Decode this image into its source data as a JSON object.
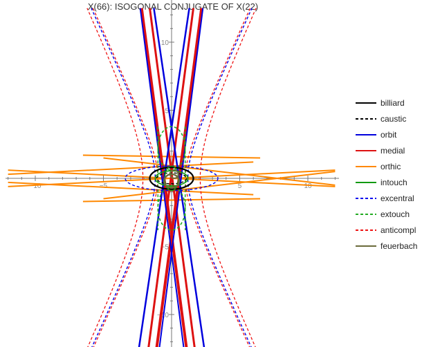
{
  "chart_data": {
    "type": "line",
    "title": "X(66): ISOGONAL CONJUGATE OF X(22)",
    "xlabel": "",
    "ylabel": "",
    "xlim": [
      -12.3,
      12.3
    ],
    "ylim": [
      -12.3,
      12.3
    ],
    "x_ticks": [
      -10,
      -5,
      5,
      10
    ],
    "y_ticks": [
      -10,
      -5,
      5,
      10
    ],
    "grid": false,
    "legend_position": "right",
    "series": [
      {
        "name": "billiard",
        "color": "#000000",
        "dash": "solid"
      },
      {
        "name": "caustic",
        "color": "#000000",
        "dash": "dashed"
      },
      {
        "name": "orbit",
        "color": "#0000dd",
        "dash": "solid"
      },
      {
        "name": "medial",
        "color": "#dd1111",
        "dash": "solid"
      },
      {
        "name": "orthic",
        "color": "#ff8800",
        "dash": "solid"
      },
      {
        "name": "intouch",
        "color": "#119911",
        "dash": "solid"
      },
      {
        "name": "excentral",
        "color": "#0000ee",
        "dash": "dashed"
      },
      {
        "name": "extouch",
        "color": "#22aa22",
        "dash": "dashed"
      },
      {
        "name": "anticompl",
        "color": "#ee1111",
        "dash": "dashed"
      },
      {
        "name": "feuerbach",
        "color": "#6b6b3a",
        "dash": "solid"
      }
    ]
  }
}
